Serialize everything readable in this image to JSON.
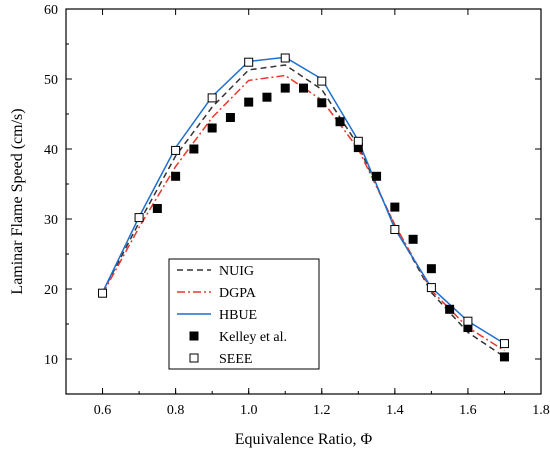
{
  "chart_data": {
    "type": "line",
    "xlabel": "Equivalence Ratio, Φ",
    "ylabel": "Laminar Flame Speed (cm/s)",
    "xlim": [
      0.5,
      1.8
    ],
    "ylim": [
      5,
      60
    ],
    "xticks": [
      "0.6",
      "0.8",
      "1.0",
      "1.2",
      "1.4",
      "1.6",
      "1.8"
    ],
    "yticks": [
      "10",
      "20",
      "30",
      "40",
      "50",
      "60"
    ],
    "grid": false,
    "legend_position": "bottom-center",
    "series": [
      {
        "name": "NUIG",
        "kind": "line",
        "style": "dashed",
        "color": "#333333",
        "x": [
          0.6,
          0.7,
          0.8,
          0.9,
          1.0,
          1.1,
          1.2,
          1.3,
          1.4,
          1.5,
          1.6,
          1.7
        ],
        "y": [
          19.5,
          29.5,
          39.0,
          46.0,
          51.3,
          52.0,
          48.5,
          40.5,
          29.0,
          19.5,
          13.8,
          10.3
        ]
      },
      {
        "name": "DGPA",
        "kind": "line",
        "style": "dashdot",
        "color": "#e8382a",
        "x": [
          0.6,
          0.7,
          0.8,
          0.9,
          1.0,
          1.1,
          1.2,
          1.3,
          1.4,
          1.5,
          1.6,
          1.7
        ],
        "y": [
          19.3,
          28.8,
          37.5,
          44.5,
          49.8,
          50.5,
          47.0,
          40.0,
          29.2,
          19.8,
          14.5,
          11.2
        ]
      },
      {
        "name": "HBUE",
        "kind": "line",
        "style": "solid",
        "color": "#1f6fd1",
        "x": [
          0.6,
          0.7,
          0.8,
          0.9,
          1.0,
          1.1,
          1.2,
          1.3,
          1.4,
          1.5,
          1.6,
          1.7
        ],
        "y": [
          19.5,
          30.3,
          40.2,
          47.5,
          52.5,
          53.1,
          50.0,
          41.2,
          28.6,
          20.2,
          15.4,
          12.2
        ]
      },
      {
        "name": "Kelley et al.",
        "kind": "marker",
        "marker": "filled-square",
        "color": "#000000",
        "x": [
          0.75,
          0.8,
          0.85,
          0.9,
          0.95,
          1.0,
          1.05,
          1.1,
          1.15,
          1.2,
          1.25,
          1.3,
          1.35,
          1.4,
          1.45,
          1.5,
          1.55,
          1.6,
          1.7
        ],
        "y": [
          31.5,
          36.1,
          40.0,
          43.0,
          44.5,
          46.7,
          47.4,
          48.7,
          48.7,
          46.6,
          43.9,
          40.2,
          36.1,
          31.7,
          27.1,
          22.9,
          17.1,
          14.5,
          10.3
        ]
      },
      {
        "name": "SEEE",
        "kind": "marker",
        "marker": "open-square",
        "color": "#000000",
        "x": [
          0.6,
          0.7,
          0.8,
          0.9,
          1.0,
          1.1,
          1.2,
          1.3,
          1.4,
          1.5,
          1.6,
          1.7
        ],
        "y": [
          19.4,
          30.2,
          39.8,
          47.3,
          52.4,
          53.0,
          49.7,
          41.1,
          28.5,
          20.2,
          15.4,
          12.2
        ]
      }
    ]
  }
}
